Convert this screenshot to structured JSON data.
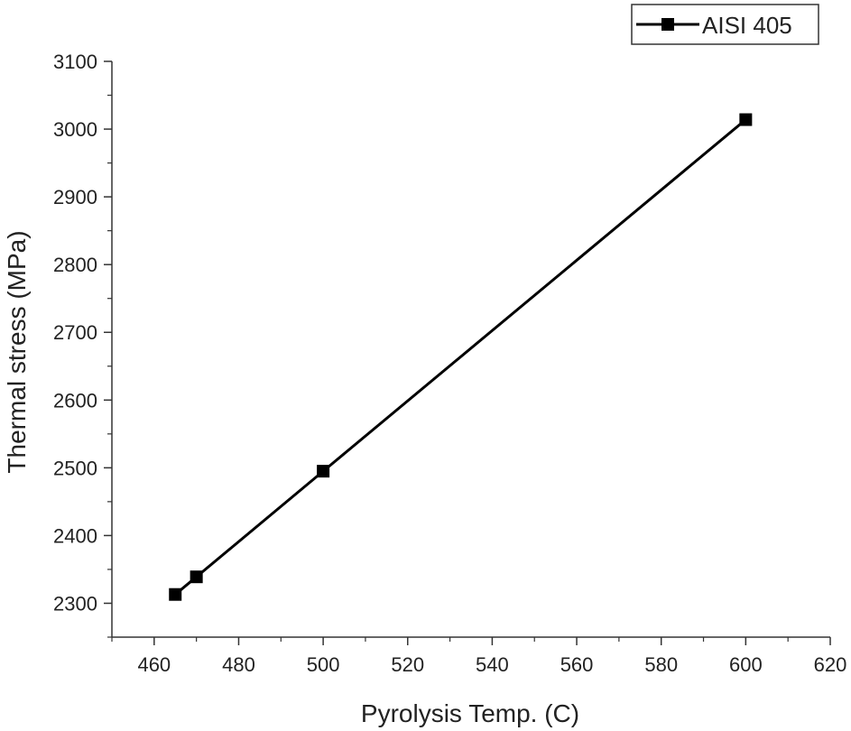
{
  "chart_data": {
    "type": "line",
    "title": "",
    "xlabel": "Pyrolysis Temp. (C)",
    "ylabel": "Thermal stress (MPa)",
    "xlim": [
      450,
      620
    ],
    "ylim": [
      2250,
      3100
    ],
    "x_ticks": [
      460,
      480,
      500,
      520,
      540,
      560,
      580,
      600,
      620
    ],
    "y_ticks": [
      2300,
      2400,
      2500,
      2600,
      2700,
      2800,
      2900,
      3000,
      3100
    ],
    "grid": false,
    "legend_position": "top-right",
    "series": [
      {
        "name": "AISI 405",
        "color": "#000000",
        "marker": "square",
        "x": [
          465,
          470,
          500,
          600
        ],
        "y": [
          2313,
          2339,
          2495,
          3014
        ]
      }
    ]
  }
}
